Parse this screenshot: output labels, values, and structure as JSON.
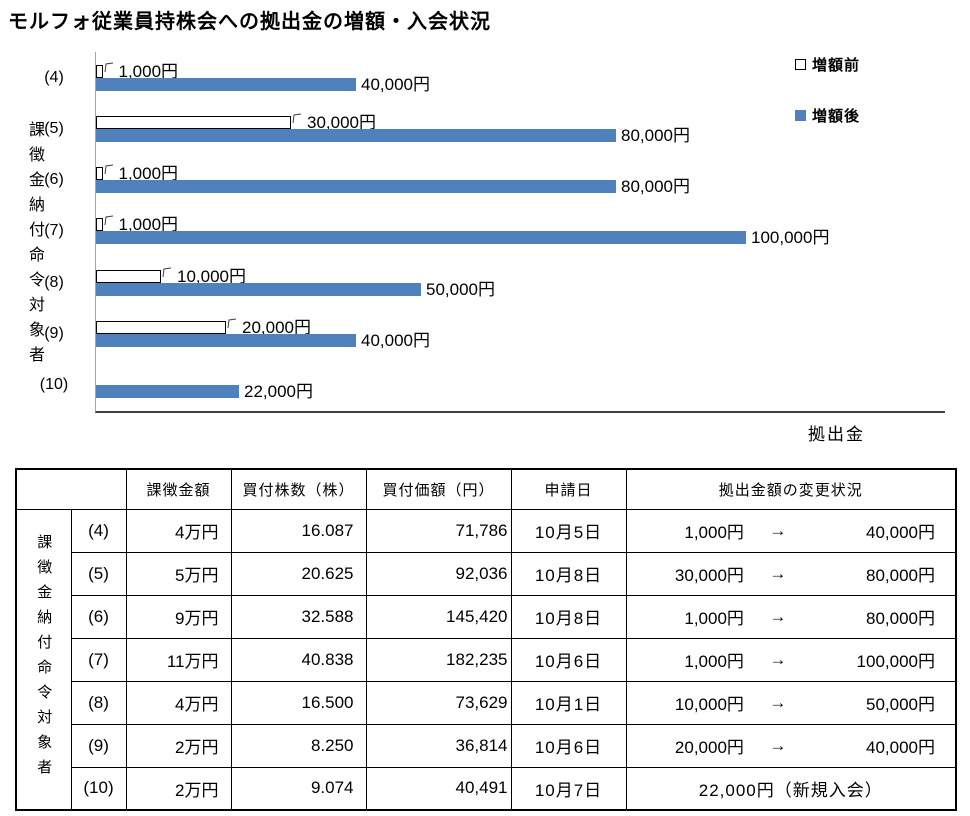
{
  "title": "モルフォ従業員持株会への拠出金の増額・入会状況",
  "chart_data": {
    "type": "bar",
    "orientation": "horizontal",
    "title": "モルフォ従業員持株会への拠出金の増額・入会状況",
    "xlabel": "拠出金",
    "ylabel": "課徴金納付命令対象者",
    "xlim": [
      0,
      130000
    ],
    "grid": false,
    "legend_position": "top-right",
    "categories": [
      "(4)",
      "(5)",
      "(6)",
      "(7)",
      "(8)",
      "(9)",
      "(10)"
    ],
    "series": [
      {
        "name": "増額前",
        "color": "#ffffff",
        "values": [
          1000,
          30000,
          1000,
          1000,
          10000,
          20000,
          null
        ],
        "labels": [
          "1,000円",
          "30,000円",
          "1,000円",
          "1,000円",
          "10,000円",
          "20,000円",
          ""
        ]
      },
      {
        "name": "増額後",
        "color": "#4f81bd",
        "values": [
          40000,
          80000,
          80000,
          100000,
          50000,
          40000,
          22000
        ],
        "labels": [
          "40,000円",
          "80,000円",
          "80,000円",
          "100,000円",
          "50,000円",
          "40,000円",
          "22,000円"
        ]
      }
    ]
  },
  "table": {
    "row_group_label": "課徴金納付命令対象者",
    "columns": [
      "課徴金額",
      "買付株数（株）",
      "買付価額（円）",
      "申請日",
      "拠出金額の変更状況"
    ],
    "rows": [
      {
        "id": "(4)",
        "amount": "4万円",
        "shares": "16.087",
        "price": "71,786",
        "date": "10月5日",
        "before": "1,000円",
        "arrow": "→",
        "after": "40,000円"
      },
      {
        "id": "(5)",
        "amount": "5万円",
        "shares": "20.625",
        "price": "92,036",
        "date": "10月8日",
        "before": "30,000円",
        "arrow": "→",
        "after": "80,000円"
      },
      {
        "id": "(6)",
        "amount": "9万円",
        "shares": "32.588",
        "price": "145,420",
        "date": "10月8日",
        "before": "1,000円",
        "arrow": "→",
        "after": "80,000円"
      },
      {
        "id": "(7)",
        "amount": "11万円",
        "shares": "40.838",
        "price": "182,235",
        "date": "10月6日",
        "before": "1,000円",
        "arrow": "→",
        "after": "100,000円"
      },
      {
        "id": "(8)",
        "amount": "4万円",
        "shares": "16.500",
        "price": "73,629",
        "date": "10月1日",
        "before": "10,000円",
        "arrow": "→",
        "after": "50,000円"
      },
      {
        "id": "(9)",
        "amount": "2万円",
        "shares": "8.250",
        "price": "36,814",
        "date": "10月6日",
        "before": "20,000円",
        "arrow": "→",
        "after": "40,000円"
      },
      {
        "id": "(10)",
        "amount": "2万円",
        "shares": "9.074",
        "price": "40,491",
        "date": "10月7日",
        "change": "22,000円（新規入会）"
      }
    ]
  },
  "colors": {
    "bar_after": "#4f81bd",
    "bar_before_fill": "#ffffff",
    "bar_border": "#000000",
    "axis_y": "#a6a6a6",
    "axis_x": "#404040"
  }
}
